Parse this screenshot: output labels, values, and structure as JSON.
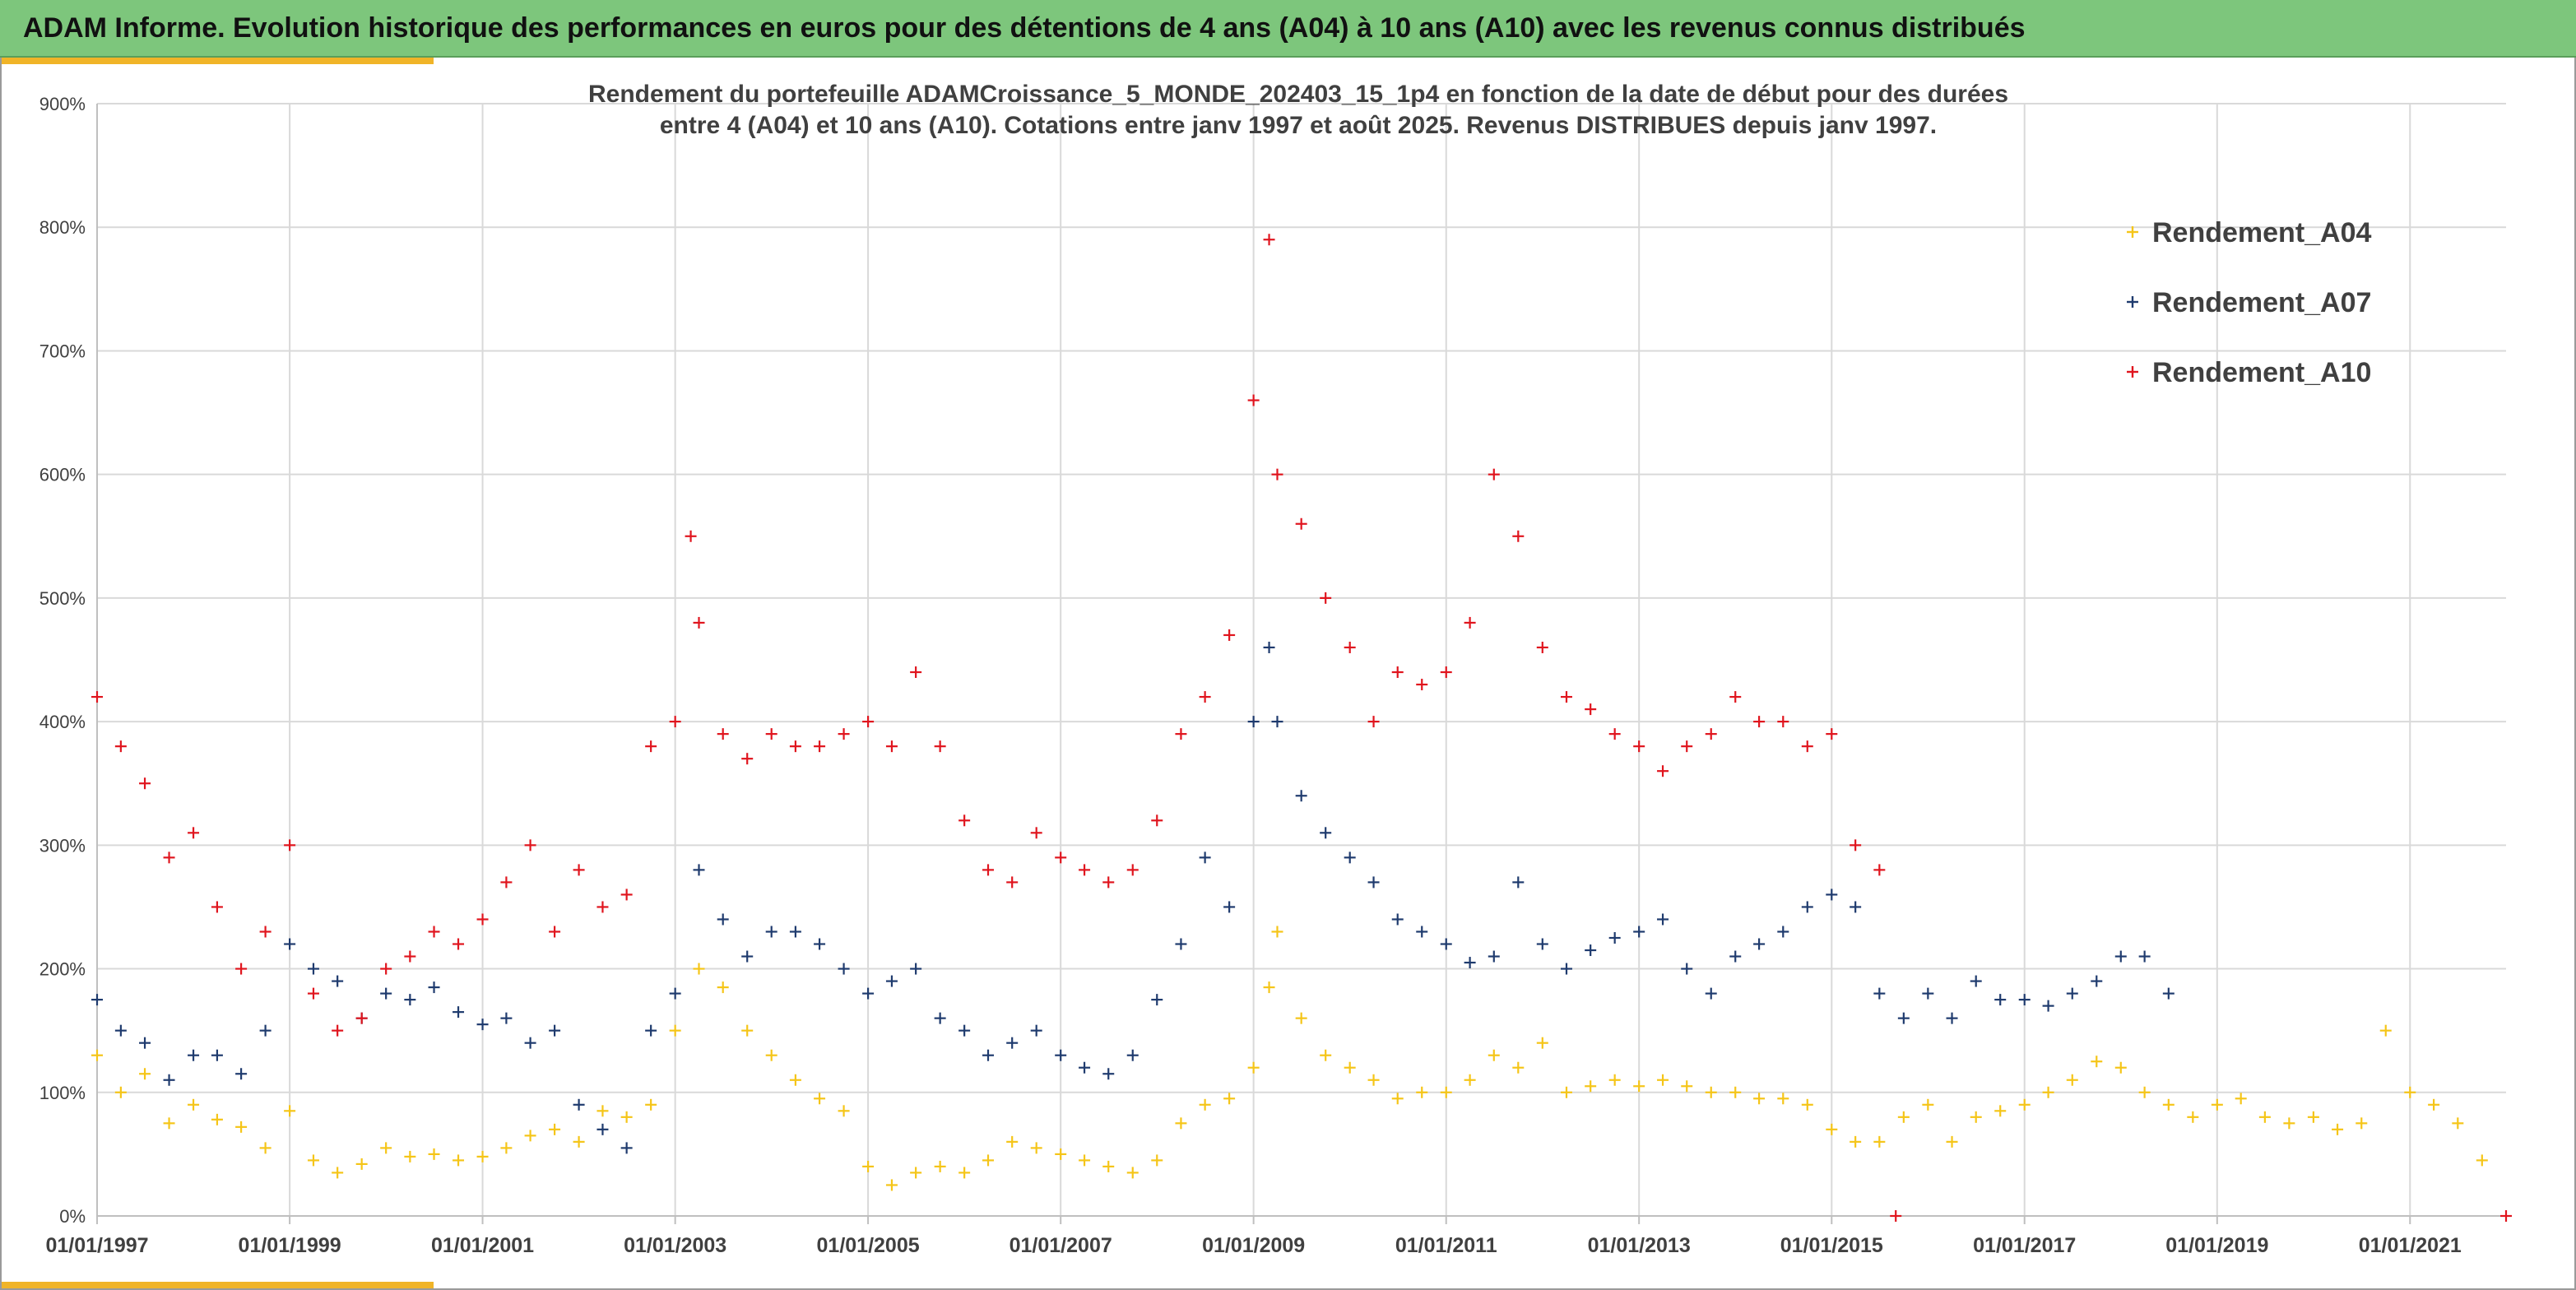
{
  "banner": {
    "title": "ADAM Informe. Evolution historique des performances en euros pour des détentions de 4 ans (A04) à 10 ans (A10) avec les revenus connus distribués"
  },
  "colors": {
    "banner_bg": "#7dc67c",
    "accent": "#f0b428",
    "A04": "#f5c518",
    "A07": "#1f3b6e",
    "A10": "#e0151e"
  },
  "chart_data": {
    "type": "scatter",
    "title_lines": [
      "Rendement du portefeuille ADAMCroissance_5_MONDE_202403_15_1p4 en fonction de la date de début pour des durées",
      "entre 4 (A04) et 10 ans (A10). Cotations entre janv 1997 et août 2025. Revenus DISTRIBUES depuis janv 1997."
    ],
    "x_type": "date",
    "xlim": [
      "1997-01-01",
      "2021-12-31"
    ],
    "x_ticks": [
      "01/01/1997",
      "01/01/1999",
      "01/01/2001",
      "01/01/2003",
      "01/01/2005",
      "01/01/2007",
      "01/01/2009",
      "01/01/2011",
      "01/01/2013",
      "01/01/2015",
      "01/01/2017",
      "01/01/2019",
      "01/01/2021"
    ],
    "ylim": [
      0,
      900
    ],
    "y_ticks": [
      "0%",
      "100%",
      "200%",
      "300%",
      "400%",
      "500%",
      "600%",
      "700%",
      "800%",
      "900%"
    ],
    "y_unit": "%",
    "grid": true,
    "legend_position": "top-right",
    "marker": "+",
    "series": [
      {
        "name": "Rendement_A04",
        "color": "#f5c518",
        "x": [
          "1997-01-01",
          "1997-04-01",
          "1997-07-01",
          "1997-10-01",
          "1998-01-01",
          "1998-04-01",
          "1998-07-01",
          "1998-10-01",
          "1999-01-01",
          "1999-04-01",
          "1999-07-01",
          "1999-10-01",
          "2000-01-01",
          "2000-04-01",
          "2000-07-01",
          "2000-10-01",
          "2001-01-01",
          "2001-04-01",
          "2001-07-01",
          "2001-10-01",
          "2002-01-01",
          "2002-04-01",
          "2002-07-01",
          "2002-10-01",
          "2003-01-01",
          "2003-04-01",
          "2003-07-01",
          "2003-10-01",
          "2004-01-01",
          "2004-04-01",
          "2004-07-01",
          "2004-10-01",
          "2005-01-01",
          "2005-04-01",
          "2005-07-01",
          "2005-10-01",
          "2006-01-01",
          "2006-04-01",
          "2006-07-01",
          "2006-10-01",
          "2007-01-01",
          "2007-04-01",
          "2007-07-01",
          "2007-10-01",
          "2008-01-01",
          "2008-04-01",
          "2008-07-01",
          "2008-10-01",
          "2009-01-01",
          "2009-03-01",
          "2009-04-01",
          "2009-07-01",
          "2009-10-01",
          "2010-01-01",
          "2010-04-01",
          "2010-07-01",
          "2010-10-01",
          "2011-01-01",
          "2011-04-01",
          "2011-07-01",
          "2011-10-01",
          "2012-01-01",
          "2012-04-01",
          "2012-07-01",
          "2012-10-01",
          "2013-01-01",
          "2013-04-01",
          "2013-07-01",
          "2013-10-01",
          "2014-01-01",
          "2014-04-01",
          "2014-07-01",
          "2014-10-01",
          "2015-01-01",
          "2015-04-01",
          "2015-07-01",
          "2015-10-01",
          "2016-01-01",
          "2016-04-01",
          "2016-07-01",
          "2016-10-01",
          "2017-01-01",
          "2017-04-01",
          "2017-07-01",
          "2017-10-01",
          "2018-01-01",
          "2018-04-01",
          "2018-07-01",
          "2018-10-01",
          "2019-01-01",
          "2019-04-01",
          "2019-07-01",
          "2019-10-01",
          "2020-01-01",
          "2020-04-01",
          "2020-07-01",
          "2020-10-01",
          "2021-01-01",
          "2021-04-01",
          "2021-07-01",
          "2021-10-01"
        ],
        "y": [
          130,
          100,
          115,
          75,
          90,
          78,
          72,
          55,
          85,
          45,
          35,
          42,
          55,
          48,
          50,
          45,
          48,
          55,
          65,
          70,
          60,
          85,
          80,
          90,
          150,
          200,
          185,
          150,
          130,
          110,
          95,
          85,
          40,
          25,
          35,
          40,
          35,
          45,
          60,
          55,
          50,
          45,
          40,
          35,
          45,
          75,
          90,
          95,
          120,
          185,
          230,
          160,
          130,
          120,
          110,
          95,
          100,
          100,
          110,
          130,
          120,
          140,
          100,
          105,
          110,
          105,
          110,
          105,
          100,
          100,
          95,
          95,
          90,
          70,
          60,
          60,
          80,
          90,
          60,
          80,
          85,
          90,
          100,
          110,
          125,
          120,
          100,
          90,
          80,
          90,
          95,
          80,
          75,
          80,
          70,
          75,
          150,
          100,
          90,
          75,
          45
        ]
      },
      {
        "name": "Rendement_A07",
        "color": "#1f3b6e",
        "x": [
          "1997-01-01",
          "1997-04-01",
          "1997-07-01",
          "1997-10-01",
          "1998-01-01",
          "1998-04-01",
          "1998-07-01",
          "1998-10-01",
          "1999-01-01",
          "1999-04-01",
          "1999-07-01",
          "1999-10-01",
          "2000-01-01",
          "2000-04-01",
          "2000-07-01",
          "2000-10-01",
          "2001-01-01",
          "2001-04-01",
          "2001-07-01",
          "2001-10-01",
          "2002-01-01",
          "2002-04-01",
          "2002-07-01",
          "2002-10-01",
          "2003-01-01",
          "2003-04-01",
          "2003-07-01",
          "2003-10-01",
          "2004-01-01",
          "2004-04-01",
          "2004-07-01",
          "2004-10-01",
          "2005-01-01",
          "2005-04-01",
          "2005-07-01",
          "2005-10-01",
          "2006-01-01",
          "2006-04-01",
          "2006-07-01",
          "2006-10-01",
          "2007-01-01",
          "2007-04-01",
          "2007-07-01",
          "2007-10-01",
          "2008-01-01",
          "2008-04-01",
          "2008-07-01",
          "2008-10-01",
          "2009-01-01",
          "2009-03-01",
          "2009-04-01",
          "2009-07-01",
          "2009-10-01",
          "2010-01-01",
          "2010-04-01",
          "2010-07-01",
          "2010-10-01",
          "2011-01-01",
          "2011-04-01",
          "2011-07-01",
          "2011-10-01",
          "2012-01-01",
          "2012-04-01",
          "2012-07-01",
          "2012-10-01",
          "2013-01-01",
          "2013-04-01",
          "2013-07-01",
          "2013-10-01",
          "2014-01-01",
          "2014-04-01",
          "2014-07-01",
          "2014-10-01",
          "2015-01-01",
          "2015-04-01",
          "2015-07-01",
          "2015-10-01",
          "2016-01-01",
          "2016-04-01",
          "2016-07-01",
          "2016-10-01",
          "2017-01-01",
          "2017-04-01",
          "2017-07-01",
          "2017-10-01",
          "2018-01-01",
          "2018-04-01",
          "2018-07-01"
        ],
        "y": [
          175,
          150,
          140,
          110,
          130,
          130,
          115,
          150,
          220,
          200,
          190,
          160,
          180,
          175,
          185,
          165,
          155,
          160,
          140,
          150,
          90,
          70,
          55,
          150,
          180,
          280,
          240,
          210,
          230,
          230,
          220,
          200,
          180,
          190,
          200,
          160,
          150,
          130,
          140,
          150,
          130,
          120,
          115,
          130,
          175,
          220,
          290,
          250,
          400,
          460,
          400,
          340,
          310,
          290,
          270,
          240,
          230,
          220,
          205,
          210,
          270,
          220,
          200,
          215,
          225,
          230,
          240,
          200,
          180,
          210,
          220,
          230,
          250,
          260,
          250,
          180,
          160,
          180,
          160,
          190,
          175,
          175,
          170,
          180,
          190,
          210,
          210,
          180
        ]
      },
      {
        "name": "Rendement_A10",
        "color": "#e0151e",
        "x": [
          "1997-01-01",
          "1997-04-01",
          "1997-07-01",
          "1997-10-01",
          "1998-01-01",
          "1998-04-01",
          "1998-07-01",
          "1998-10-01",
          "1999-01-01",
          "1999-04-01",
          "1999-07-01",
          "1999-10-01",
          "2000-01-01",
          "2000-04-01",
          "2000-07-01",
          "2000-10-01",
          "2001-01-01",
          "2001-04-01",
          "2001-07-01",
          "2001-10-01",
          "2002-01-01",
          "2002-04-01",
          "2002-07-01",
          "2002-10-01",
          "2003-01-01",
          "2003-03-01",
          "2003-04-01",
          "2003-07-01",
          "2003-10-01",
          "2004-01-01",
          "2004-04-01",
          "2004-07-01",
          "2004-10-01",
          "2005-01-01",
          "2005-04-01",
          "2005-07-01",
          "2005-10-01",
          "2006-01-01",
          "2006-04-01",
          "2006-07-01",
          "2006-10-01",
          "2007-01-01",
          "2007-04-01",
          "2007-07-01",
          "2007-10-01",
          "2008-01-01",
          "2008-04-01",
          "2008-07-01",
          "2008-10-01",
          "2009-01-01",
          "2009-03-01",
          "2009-04-01",
          "2009-07-01",
          "2009-10-01",
          "2010-01-01",
          "2010-04-01",
          "2010-07-01",
          "2010-10-01",
          "2011-01-01",
          "2011-04-01",
          "2011-07-01",
          "2011-10-01",
          "2012-01-01",
          "2012-04-01",
          "2012-07-01",
          "2012-10-01",
          "2013-01-01",
          "2013-04-01",
          "2013-07-01",
          "2013-10-01",
          "2014-01-01",
          "2014-04-01",
          "2014-07-01",
          "2014-10-01",
          "2015-01-01",
          "2015-04-01",
          "2015-07-01"
        ],
        "y": [
          420,
          380,
          350,
          290,
          310,
          250,
          200,
          230,
          300,
          180,
          150,
          160,
          200,
          210,
          230,
          220,
          240,
          270,
          300,
          230,
          280,
          250,
          260,
          380,
          400,
          550,
          480,
          390,
          370,
          390,
          380,
          380,
          390,
          400,
          380,
          440,
          380,
          320,
          280,
          270,
          310,
          290,
          280,
          270,
          280,
          320,
          390,
          420,
          470,
          660,
          790,
          600,
          560,
          500,
          460,
          400,
          440,
          430,
          440,
          480,
          600,
          550,
          460,
          420,
          410,
          390,
          380,
          360,
          380,
          390,
          420,
          400,
          400,
          380,
          390,
          300,
          280
        ]
      },
      {
        "name": "",
        "color": "#e0151e",
        "x": [
          "2015-09-01",
          "2021-12-31"
        ],
        "y": [
          0,
          0
        ]
      }
    ]
  }
}
